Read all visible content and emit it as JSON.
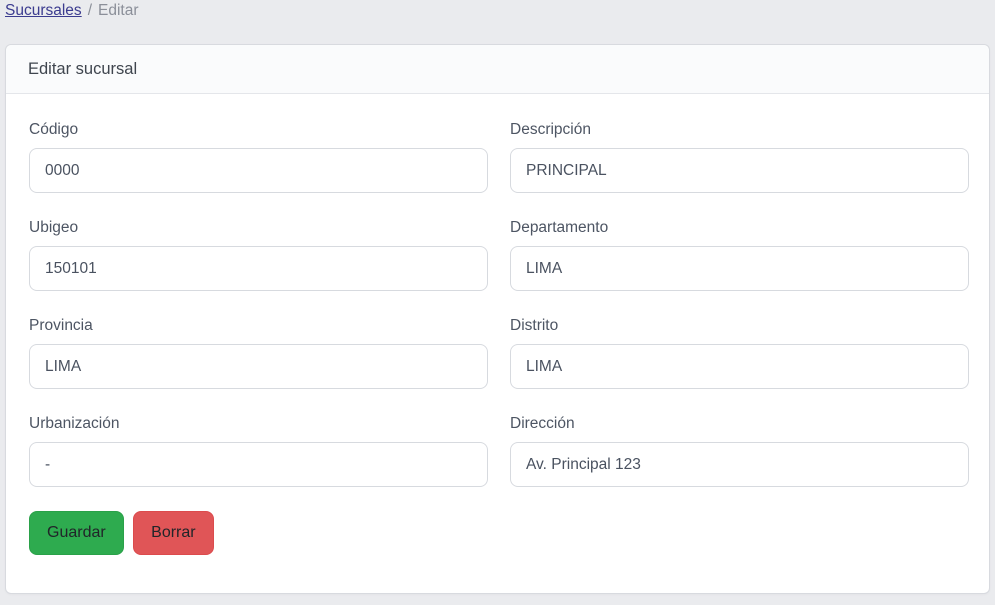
{
  "breadcrumb": {
    "link_label": "Sucursales",
    "separator": "/",
    "current": "Editar"
  },
  "card": {
    "title": "Editar sucursal"
  },
  "form": {
    "fields": [
      {
        "id": "codigo",
        "label": "Código",
        "value": "0000"
      },
      {
        "id": "descripcion",
        "label": "Descripción",
        "value": "PRINCIPAL"
      },
      {
        "id": "ubigeo",
        "label": "Ubigeo",
        "value": "150101"
      },
      {
        "id": "departamento",
        "label": "Departamento",
        "value": "LIMA"
      },
      {
        "id": "provincia",
        "label": "Provincia",
        "value": "LIMA"
      },
      {
        "id": "distrito",
        "label": "Distrito",
        "value": "LIMA"
      },
      {
        "id": "urbanizacion",
        "label": "Urbanización",
        "value": "-"
      },
      {
        "id": "direccion",
        "label": "Dirección",
        "value": "Av. Principal 123"
      }
    ],
    "buttons": {
      "save_label": "Guardar",
      "delete_label": "Borrar"
    }
  },
  "colors": {
    "save_button_bg": "#2eab4f",
    "delete_button_bg": "#e05557",
    "breadcrumb_link": "#3b3b8f",
    "page_background": "#eaebee"
  }
}
